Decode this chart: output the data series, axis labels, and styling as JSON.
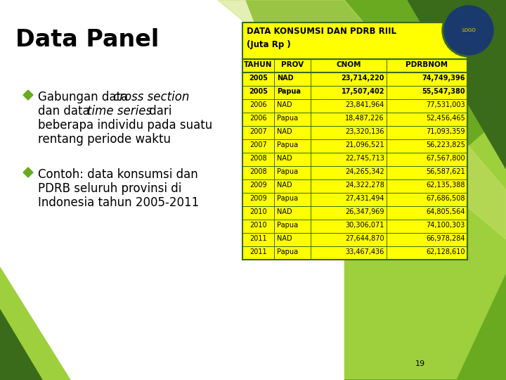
{
  "title": "Data Panel",
  "table_header_line1": "DATA KONSUMSI DAN PDRB RIIL",
  "table_header_line2": "(Juta Rp )",
  "col_headers": [
    "TAHUN",
    "PROV",
    "CNOM",
    "PDRBNOM"
  ],
  "table_data": [
    [
      "2005",
      "NAD",
      "23,714,220",
      "74,749,396"
    ],
    [
      "2005",
      "Papua",
      "17,507,402",
      "55,547,380"
    ],
    [
      "2006",
      "NAD",
      "23,841,964",
      "77,531,003"
    ],
    [
      "2006",
      "Papua",
      "18,487,226",
      "52,456,465"
    ],
    [
      "2007",
      "NAD",
      "23,320,136",
      "71,093,359"
    ],
    [
      "2007",
      "Papua",
      "21,096,521",
      "56,223,825"
    ],
    [
      "2008",
      "NAD",
      "22,745,713",
      "67,567,800"
    ],
    [
      "2008",
      "Papua",
      "24,265,342",
      "56,587,621"
    ],
    [
      "2009",
      "NAD",
      "24,322,278",
      "62,135,388"
    ],
    [
      "2009",
      "Papua",
      "27,431,494",
      "67,686,508"
    ],
    [
      "2010",
      "NAD",
      "26,347,969",
      "64,805,564"
    ],
    [
      "2010",
      "Papua",
      "30,306,071",
      "74,100,303"
    ],
    [
      "2011",
      "NAD",
      "27,644,870",
      "66,978,284"
    ],
    [
      "2011",
      "Papua",
      "33,467,436",
      "62,128,610"
    ]
  ],
  "bg_color": "#ffffff",
  "green_dark": "#3a6b1a",
  "green_med": "#6aaa20",
  "green_light": "#9ecf3c",
  "green_pale": "#c8e06a",
  "yellow": "#ffff00",
  "page_number": "19"
}
